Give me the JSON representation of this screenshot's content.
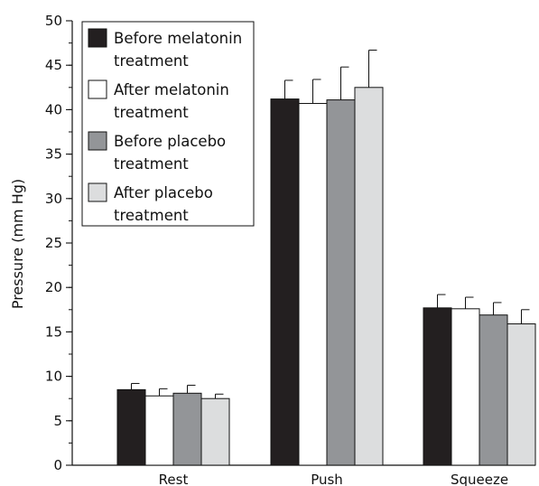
{
  "chart_data": {
    "type": "bar",
    "ylabel": "Pressure (mm Hg)",
    "xlabel": "",
    "ylim": [
      0,
      50
    ],
    "y_major_ticks": [
      0,
      5,
      10,
      15,
      20,
      25,
      30,
      35,
      40,
      45,
      50
    ],
    "y_minor_step": 2.5,
    "legend_position": "top-left",
    "categories": [
      "Rest",
      "Push",
      "Squeeze"
    ],
    "series": [
      {
        "name": "Before melatonin treatment",
        "color": "#231f20",
        "values": [
          8.5,
          41.2,
          17.7
        ],
        "errors": [
          0.7,
          2.1,
          1.5
        ]
      },
      {
        "name": "After melatonin treatment",
        "color": "#ffffff",
        "values": [
          7.8,
          40.7,
          17.6
        ],
        "errors": [
          0.8,
          2.7,
          1.3
        ]
      },
      {
        "name": "Before placebo treatment",
        "color": "#939598",
        "values": [
          8.1,
          41.1,
          16.9
        ],
        "errors": [
          0.9,
          3.7,
          1.4
        ]
      },
      {
        "name": "After placebo treatment",
        "color": "#dcddde",
        "values": [
          7.5,
          42.5,
          15.9
        ],
        "errors": [
          0.5,
          4.2,
          1.6
        ]
      }
    ],
    "legend": [
      {
        "line1": "Before melatonin",
        "line2": "treatment"
      },
      {
        "line1": "After melatonin",
        "line2": "treatment"
      },
      {
        "line1": "Before placebo",
        "line2": "treatment"
      },
      {
        "line1": "After placebo",
        "line2": "treatment"
      }
    ]
  }
}
